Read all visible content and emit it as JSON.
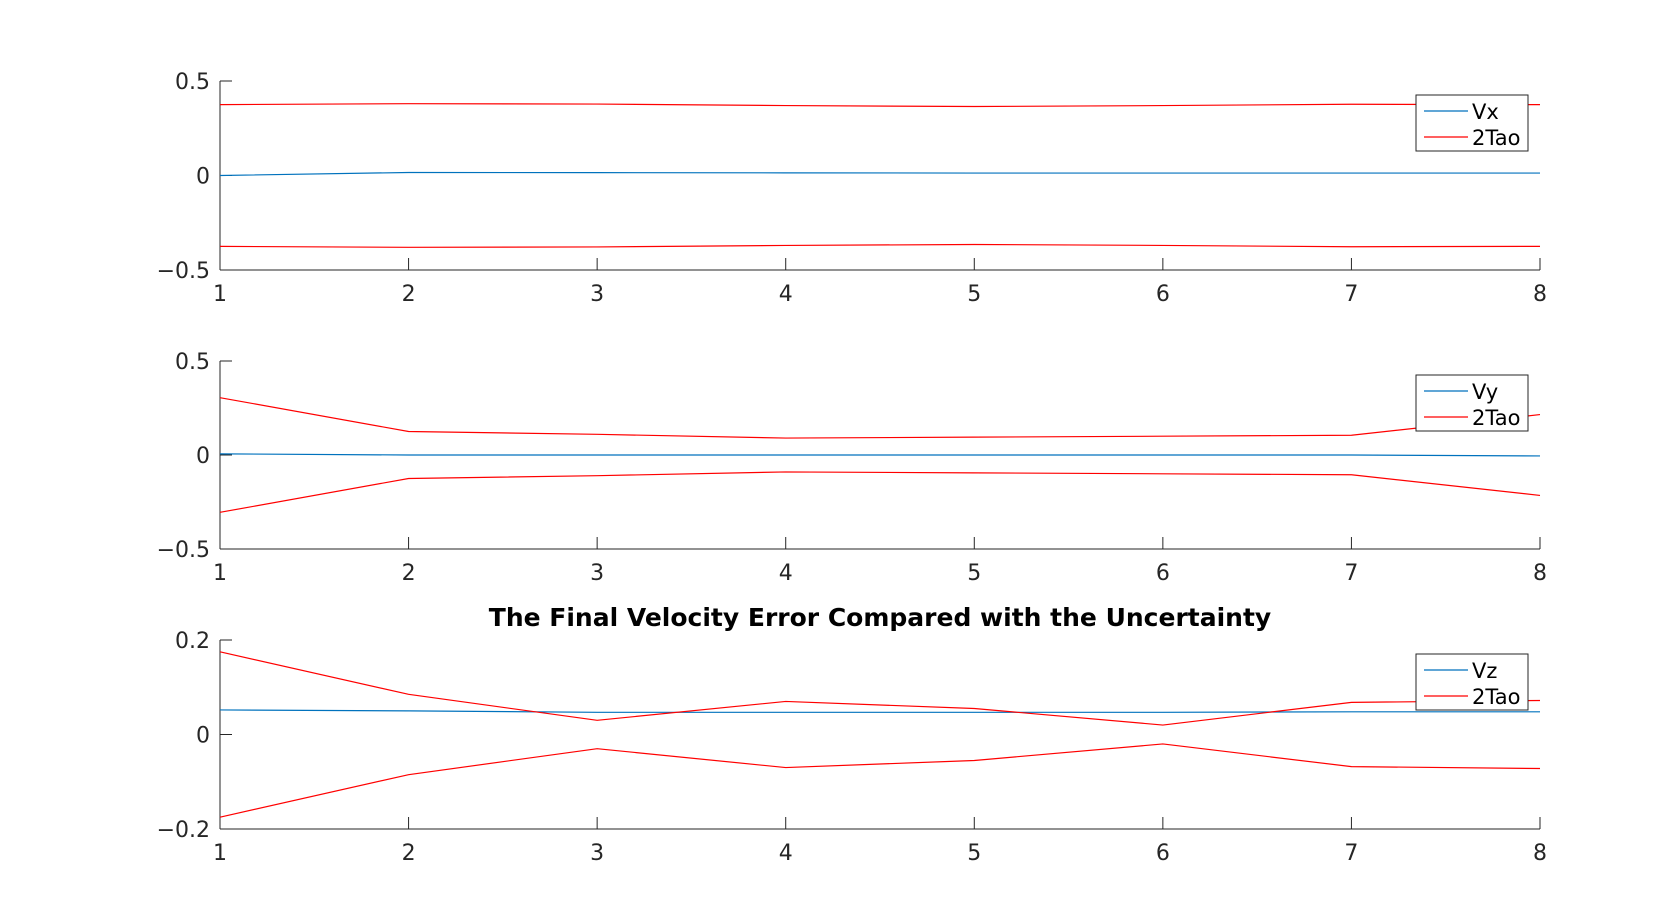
{
  "chart_data": [
    {
      "type": "line",
      "title": "",
      "xlabel": "",
      "ylabel": "",
      "xlim": [
        1,
        8
      ],
      "ylim": [
        -0.5,
        0.5
      ],
      "xticks": [
        1,
        2,
        3,
        4,
        5,
        6,
        7,
        8
      ],
      "yticks": [
        -0.5,
        0,
        0.5
      ],
      "ytick_labels": [
        "−0.5",
        "0",
        "0.5"
      ],
      "grid": false,
      "legend_position": "top-right",
      "x": [
        1,
        2,
        3,
        4,
        5,
        6,
        7,
        8
      ],
      "series": [
        {
          "name": "Vx",
          "color": "#0072BD",
          "values": [
            0.0,
            0.016,
            0.015,
            0.014,
            0.013,
            0.013,
            0.013,
            0.013
          ]
        },
        {
          "name": "2Tao",
          "color": "#FF0000",
          "values": [
            0.375,
            0.38,
            0.378,
            0.37,
            0.365,
            0.37,
            0.377,
            0.375
          ]
        },
        {
          "name": "",
          "color": "#FF0000",
          "values": [
            -0.375,
            -0.38,
            -0.378,
            -0.37,
            -0.365,
            -0.37,
            -0.377,
            -0.375
          ]
        }
      ]
    },
    {
      "type": "line",
      "title": "",
      "xlabel": "",
      "ylabel": "",
      "xlim": [
        1,
        8
      ],
      "ylim": [
        -0.5,
        0.5
      ],
      "xticks": [
        1,
        2,
        3,
        4,
        5,
        6,
        7,
        8
      ],
      "yticks": [
        -0.5,
        0,
        0.5
      ],
      "ytick_labels": [
        "−0.5",
        "0",
        "0.5"
      ],
      "grid": false,
      "legend_position": "top-right",
      "x": [
        1,
        2,
        3,
        4,
        5,
        6,
        7,
        8
      ],
      "series": [
        {
          "name": "Vy",
          "color": "#0072BD",
          "values": [
            0.006,
            0.0,
            0.0,
            0.0,
            0.0,
            0.0,
            0.0,
            -0.005
          ]
        },
        {
          "name": "2Tao",
          "color": "#FF0000",
          "values": [
            0.305,
            0.125,
            0.11,
            0.09,
            0.095,
            0.1,
            0.105,
            0.215
          ]
        },
        {
          "name": "",
          "color": "#FF0000",
          "values": [
            -0.305,
            -0.125,
            -0.11,
            -0.09,
            -0.095,
            -0.1,
            -0.105,
            -0.215
          ]
        }
      ]
    },
    {
      "type": "line",
      "title": "The Final Velocity Error Compared with the Uncertainty",
      "xlabel": "",
      "ylabel": "",
      "xlim": [
        1,
        8
      ],
      "ylim": [
        -0.2,
        0.2
      ],
      "xticks": [
        1,
        2,
        3,
        4,
        5,
        6,
        7,
        8
      ],
      "yticks": [
        -0.2,
        0,
        0.2
      ],
      "ytick_labels": [
        "−0.2",
        "0",
        "0.2"
      ],
      "grid": false,
      "legend_position": "top-right",
      "x": [
        1,
        2,
        3,
        4,
        5,
        6,
        7,
        8
      ],
      "series": [
        {
          "name": "Vz",
          "color": "#0072BD",
          "values": [
            0.052,
            0.05,
            0.047,
            0.047,
            0.047,
            0.047,
            0.048,
            0.048
          ]
        },
        {
          "name": "2Tao",
          "color": "#FF0000",
          "values": [
            0.175,
            0.085,
            0.03,
            0.07,
            0.055,
            0.02,
            0.068,
            0.072
          ]
        },
        {
          "name": "",
          "color": "#FF0000",
          "values": [
            -0.175,
            -0.085,
            -0.03,
            -0.07,
            -0.055,
            -0.02,
            -0.068,
            -0.072
          ]
        }
      ]
    }
  ]
}
